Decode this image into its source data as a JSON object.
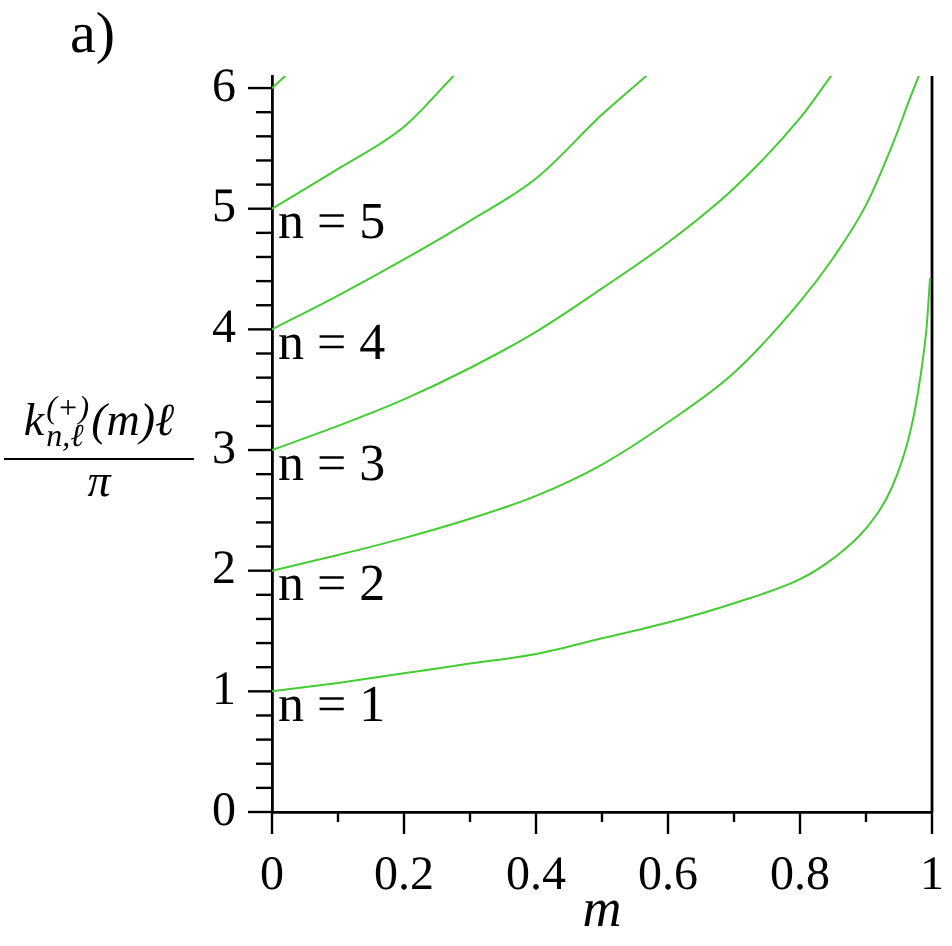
{
  "chart_data": {
    "type": "line",
    "title": "a)",
    "xlabel": "m",
    "ylabel": "k$^{(+)}$$_{n,ℓ}$(m)ℓ\nπ",
    "xlim": [
      0,
      1
    ],
    "ylim": [
      0,
      6.1
    ],
    "xticks": [
      0,
      {
        "value": 0.1,
        "label": null
      },
      0.2,
      {
        "value": 0.3,
        "label": null
      },
      0.4,
      {
        "value": 0.5,
        "label": null
      },
      0.6,
      {
        "value": 0.7,
        "label": null
      },
      0.8,
      {
        "value": 0.9,
        "label": null
      },
      1
    ],
    "yticks": [
      0,
      {
        "value": 0.2,
        "label": null
      },
      {
        "value": 0.4,
        "label": null
      },
      {
        "value": 0.6,
        "label": null
      },
      {
        "value": 0.8,
        "label": null
      },
      1,
      {
        "value": 1.2,
        "label": null
      },
      {
        "value": 1.4,
        "label": null
      },
      {
        "value": 1.6,
        "label": null
      },
      {
        "value": 1.8,
        "label": null
      },
      2,
      {
        "value": 2.2,
        "label": null
      },
      {
        "value": 2.4,
        "label": null
      },
      {
        "value": 2.6,
        "label": null
      },
      {
        "value": 2.8,
        "label": null
      },
      3,
      {
        "value": 3.2,
        "label": null
      },
      {
        "value": 3.4,
        "label": null
      },
      {
        "value": 3.6,
        "label": null
      },
      {
        "value": 3.8,
        "label": null
      },
      4,
      {
        "value": 4.2,
        "label": null
      },
      {
        "value": 4.4,
        "label": null
      },
      {
        "value": 4.6,
        "label": null
      },
      {
        "value": 4.8,
        "label": null
      },
      5,
      {
        "value": 5.2,
        "label": null
      },
      {
        "value": 5.4,
        "label": null
      },
      {
        "value": 5.6,
        "label": null
      },
      {
        "value": 5.8,
        "label": null
      },
      6
    ],
    "series": [
      {
        "name": "n = 1",
        "color": "#44cc33",
        "x": [
          0,
          0.1,
          0.2,
          0.3,
          0.4,
          0.5,
          0.6,
          0.7,
          0.8,
          0.85,
          0.9,
          0.94,
          0.967,
          0.982,
          0.992,
          0.997
        ],
        "values": [
          1,
          1.07,
          1.15,
          1.23,
          1.31,
          1.44,
          1.57,
          1.73,
          1.93,
          2.1,
          2.35,
          2.7,
          3.15,
          3.59,
          4.03,
          4.42
        ]
      },
      {
        "name": "n = 2",
        "color": "#44cc33",
        "x": [
          0,
          0.1,
          0.2,
          0.3,
          0.4,
          0.5,
          0.6,
          0.7,
          0.8,
          0.85,
          0.9,
          0.94,
          0.967,
          0.98
        ],
        "values": [
          2,
          2.13,
          2.27,
          2.43,
          2.62,
          2.88,
          3.23,
          3.64,
          4.23,
          4.59,
          5.03,
          5.53,
          5.92,
          6.1
        ]
      },
      {
        "name": "n = 3",
        "color": "#44cc33",
        "x": [
          0,
          0.1,
          0.2,
          0.3,
          0.4,
          0.5,
          0.6,
          0.7,
          0.8,
          0.847
        ],
        "values": [
          3,
          3.2,
          3.42,
          3.68,
          3.98,
          4.34,
          4.72,
          5.17,
          5.75,
          6.1
        ]
      },
      {
        "name": "n = 4",
        "color": "#44cc33",
        "x": [
          0,
          0.1,
          0.2,
          0.3,
          0.4,
          0.5,
          0.567
        ],
        "values": [
          4,
          4.28,
          4.58,
          4.9,
          5.25,
          5.78,
          6.1
        ]
      },
      {
        "name": "n = 5",
        "color": "#44cc33",
        "x": [
          0,
          0.1,
          0.2,
          0.275
        ],
        "values": [
          5,
          5.33,
          5.68,
          6.1
        ]
      },
      {
        "color": "#44cc33",
        "x": [
          0,
          0.02
        ],
        "values": [
          6,
          6.1
        ]
      }
    ],
    "ref_lines": [
      {
        "axis": "x",
        "value": 1,
        "color": "#000000"
      }
    ],
    "grid": false,
    "legend": false,
    "marker": "none",
    "line_style": "solid"
  }
}
